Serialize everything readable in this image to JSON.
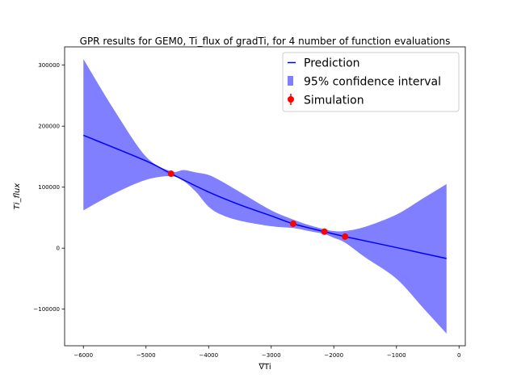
{
  "chart_data": {
    "type": "line",
    "title": "GPR results for GEM0, Ti_flux of gradTi, for 4 number of function evaluations",
    "xlabel": "∇Ti",
    "ylabel": "Ti_flux",
    "xlim": [
      -6300,
      100
    ],
    "ylim": [
      -160000,
      330000
    ],
    "x_ticks": [
      -6000,
      -5000,
      -4000,
      -3000,
      -2000,
      -1000,
      0
    ],
    "x_tick_labels": [
      "−6000",
      "−5000",
      "−4000",
      "−3000",
      "−2000",
      "−1000",
      "0"
    ],
    "y_ticks": [
      -100000,
      0,
      100000,
      200000,
      300000
    ],
    "y_tick_labels": [
      "−100000",
      "0",
      "100000",
      "200000",
      "300000"
    ],
    "grid": false,
    "legend_position": "top-right",
    "series": [
      {
        "name": "Prediction",
        "kind": "line",
        "color": "#0000ff",
        "x": [
          -6000,
          -5000,
          -4600,
          -4000,
          -3500,
          -3000,
          -2650,
          -2150,
          -1820,
          -1000,
          -200
        ],
        "y": [
          185000,
          143000,
          122000,
          92000,
          71000,
          53000,
          40000,
          27000,
          19000,
          1000,
          -17000
        ]
      },
      {
        "name": "95% confidence interval",
        "kind": "band",
        "color": "#0000ff",
        "opacity": 0.5,
        "x": [
          -6000,
          -5500,
          -5000,
          -4600,
          -4400,
          -4200,
          -4000,
          -3800,
          -3500,
          -3000,
          -2650,
          -2400,
          -2150,
          -2000,
          -1820,
          -1500,
          -1000,
          -600,
          -200
        ],
        "lower": [
          62000,
          90000,
          112000,
          118000,
          110000,
          92000,
          68000,
          55000,
          45000,
          36000,
          33000,
          28000,
          23000,
          17000,
          9000,
          -15000,
          -50000,
          -95000,
          -140000
        ],
        "upper": [
          310000,
          225000,
          150000,
          126000,
          128000,
          124000,
          120000,
          110000,
          92000,
          62000,
          47000,
          38000,
          31000,
          28000,
          28000,
          35000,
          55000,
          80000,
          105000
        ]
      },
      {
        "name": "Simulation",
        "kind": "points",
        "color": "#ff0000",
        "x": [
          -4600,
          -2650,
          -2150,
          -1820
        ],
        "y": [
          122000,
          40000,
          27000,
          19000
        ]
      }
    ]
  }
}
